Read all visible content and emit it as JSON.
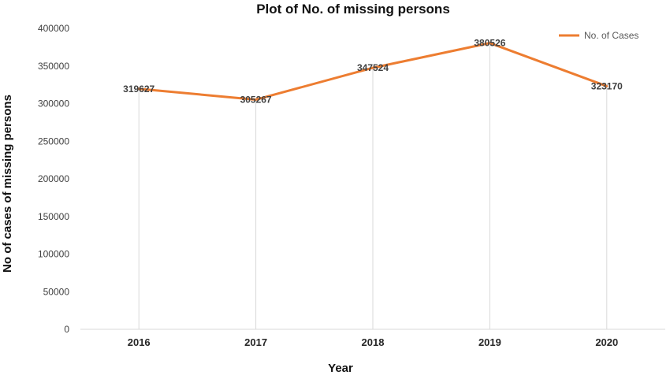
{
  "chart_data": {
    "type": "line",
    "title": "Plot of No. of missing persons",
    "xlabel": "Year",
    "ylabel": "No of cases of missing persons",
    "categories": [
      "2016",
      "2017",
      "2018",
      "2019",
      "2020"
    ],
    "series": [
      {
        "name": "No. of Cases",
        "values": [
          319627,
          305267,
          347524,
          380526,
          323170
        ],
        "labels": [
          "319627",
          "305267",
          "347524",
          "380526",
          "323170"
        ],
        "color": "#ED7D31"
      }
    ],
    "ylim": [
      0,
      400000
    ],
    "yticks": [
      "0",
      "50000",
      "100000",
      "150000",
      "200000",
      "250000",
      "300000",
      "350000",
      "400000"
    ],
    "grid": "vertical drop lines at each category",
    "legend_position": "top-right"
  }
}
